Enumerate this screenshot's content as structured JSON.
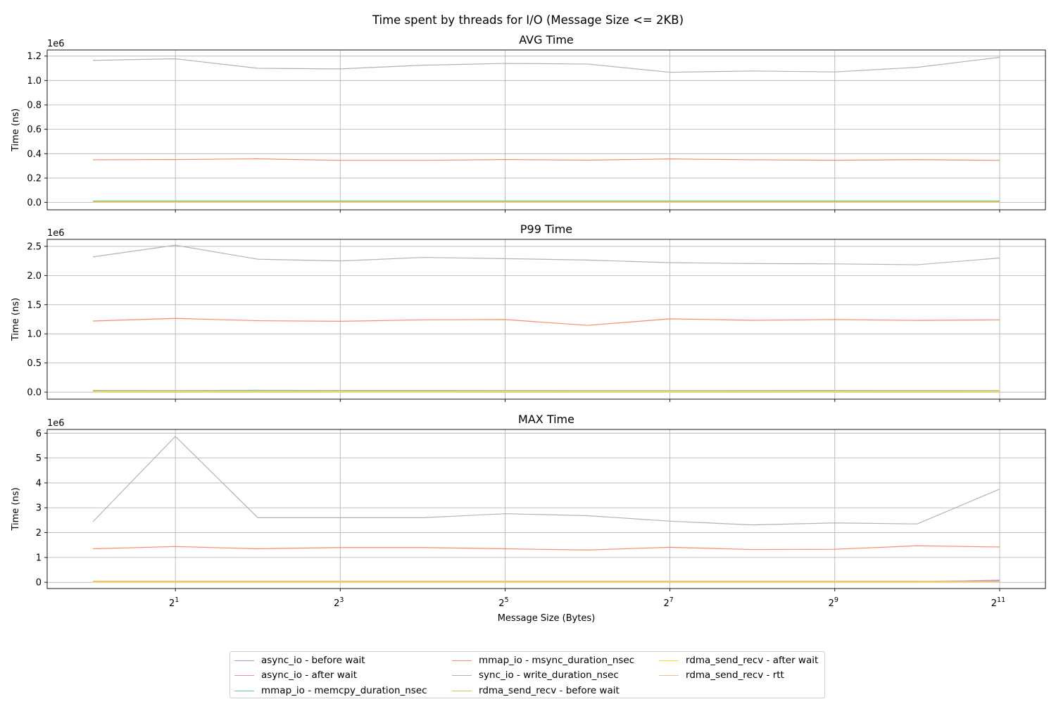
{
  "figure": {
    "suptitle": "Time spent by threads for I/O (Message Size <= 2KB)"
  },
  "chart_data": {
    "type": "line",
    "x": [
      1,
      2,
      4,
      8,
      16,
      32,
      64,
      128,
      256,
      512,
      1024,
      2048
    ],
    "xlabel": "Message Size (Bytes)",
    "xscale": "log2",
    "xticks": [
      {
        "value": 2,
        "label": "1"
      },
      {
        "value": 8,
        "label": "3"
      },
      {
        "value": 32,
        "label": "5"
      },
      {
        "value": 128,
        "label": "7"
      },
      {
        "value": 512,
        "label": "9"
      },
      {
        "value": 2048,
        "label": "11"
      }
    ],
    "xtick_base": "2",
    "grid": true,
    "legend_placement": "bottom-center",
    "series_meta": [
      {
        "name": "async_io - before wait",
        "color": "#8da0cb"
      },
      {
        "name": "async_io - after wait",
        "color": "#e78ac3"
      },
      {
        "name": "mmap_io - memcpy_duration_nsec",
        "color": "#66c2a5"
      },
      {
        "name": "mmap_io - msync_duration_nsec",
        "color": "#fc8d62"
      },
      {
        "name": "sync_io - write_duration_nsec",
        "color": "#b3b3b3"
      },
      {
        "name": "rdma_send_recv - before wait",
        "color": "#a6d854"
      },
      {
        "name": "rdma_send_recv - after wait",
        "color": "#ffd92f"
      },
      {
        "name": "rdma_send_recv - rtt",
        "color": "#e5c494"
      }
    ],
    "subplots": [
      {
        "title": "AVG Time",
        "ylabel": "Time (ns)",
        "offset_label": "1e6",
        "ylim": [
          -60000,
          1250000
        ],
        "yticks": [
          0,
          200000,
          400000,
          600000,
          800000,
          1000000,
          1200000
        ],
        "ytick_labels": [
          "0.0",
          "0.2",
          "0.4",
          "0.6",
          "0.8",
          "1.0",
          "1.2"
        ],
        "series": [
          {
            "name": "async_io - before wait",
            "values": [
              8000,
              8000,
              8000,
              8000,
              8000,
              8000,
              8000,
              8000,
              8000,
              8000,
              8000,
              8000
            ]
          },
          {
            "name": "async_io - after wait",
            "values": [
              3000,
              3000,
              3000,
              3000,
              3000,
              3000,
              3000,
              3000,
              3000,
              3000,
              3000,
              3000
            ]
          },
          {
            "name": "mmap_io - memcpy_duration_nsec",
            "values": [
              12000,
              12000,
              12000,
              12000,
              12000,
              12000,
              12000,
              12000,
              12000,
              12000,
              12000,
              12000
            ]
          },
          {
            "name": "mmap_io - msync_duration_nsec",
            "values": [
              350000,
              352000,
              358000,
              345000,
              345000,
              352000,
              347000,
              357000,
              350000,
              346000,
              351000,
              345000
            ]
          },
          {
            "name": "sync_io - write_duration_nsec",
            "values": [
              1165000,
              1178000,
              1100000,
              1095000,
              1125000,
              1140000,
              1135000,
              1067000,
              1078000,
              1070000,
              1108000,
              1190000
            ]
          },
          {
            "name": "rdma_send_recv - before wait",
            "values": [
              5000,
              5000,
              5000,
              5000,
              5000,
              5000,
              5000,
              5000,
              5000,
              5000,
              5000,
              5000
            ]
          },
          {
            "name": "rdma_send_recv - after wait",
            "values": [
              2000,
              2000,
              2000,
              2000,
              2000,
              2000,
              2000,
              2000,
              2000,
              2000,
              2000,
              2000
            ]
          },
          {
            "name": "rdma_send_recv - rtt",
            "values": [
              6000,
              6000,
              6000,
              6000,
              6000,
              6000,
              6000,
              6000,
              6000,
              6000,
              6000,
              6000
            ]
          }
        ]
      },
      {
        "title": "P99 Time",
        "ylabel": "Time (ns)",
        "offset_label": "1e6",
        "ylim": [
          -120000,
          2620000
        ],
        "yticks": [
          0,
          500000,
          1000000,
          1500000,
          2000000,
          2500000
        ],
        "ytick_labels": [
          "0.0",
          "0.5",
          "1.0",
          "1.5",
          "2.0",
          "2.5"
        ],
        "series": [
          {
            "name": "async_io - before wait",
            "values": [
              25000,
              25000,
              25000,
              25000,
              25000,
              25000,
              25000,
              25000,
              25000,
              25000,
              25000,
              25000
            ]
          },
          {
            "name": "async_io - after wait",
            "values": [
              10000,
              10000,
              10000,
              10000,
              10000,
              10000,
              10000,
              10000,
              10000,
              10000,
              10000,
              10000
            ]
          },
          {
            "name": "mmap_io - memcpy_duration_nsec",
            "values": [
              30000,
              28000,
              32000,
              30000,
              30000,
              28000,
              27000,
              26000,
              28000,
              30000,
              28000,
              27000
            ]
          },
          {
            "name": "mmap_io - msync_duration_nsec",
            "values": [
              1220000,
              1265000,
              1225000,
              1215000,
              1240000,
              1245000,
              1145000,
              1258000,
              1232000,
              1245000,
              1230000,
              1240000
            ]
          },
          {
            "name": "sync_io - write_duration_nsec",
            "values": [
              2320000,
              2520000,
              2280000,
              2250000,
              2310000,
              2290000,
              2265000,
              2220000,
              2205000,
              2200000,
              2185000,
              2300000
            ]
          },
          {
            "name": "rdma_send_recv - before wait",
            "values": [
              15000,
              15000,
              15000,
              15000,
              15000,
              15000,
              15000,
              15000,
              15000,
              15000,
              15000,
              15000
            ]
          },
          {
            "name": "rdma_send_recv - after wait",
            "values": [
              8000,
              8000,
              8000,
              8000,
              8000,
              8000,
              8000,
              8000,
              8000,
              8000,
              8000,
              8000
            ]
          },
          {
            "name": "rdma_send_recv - rtt",
            "values": [
              20000,
              20000,
              20000,
              20000,
              20000,
              20000,
              20000,
              20000,
              20000,
              20000,
              20000,
              20000
            ]
          }
        ]
      },
      {
        "title": "MAX Time",
        "ylabel": "Time (ns)",
        "offset_label": "1e6",
        "ylim": [
          -250000,
          6150000
        ],
        "yticks": [
          0,
          1000000,
          2000000,
          3000000,
          4000000,
          5000000,
          6000000
        ],
        "ytick_labels": [
          "0",
          "1",
          "2",
          "3",
          "4",
          "5",
          "6"
        ],
        "series": [
          {
            "name": "async_io - before wait",
            "values": [
              40000,
              40000,
              40000,
              40000,
              40000,
              40000,
              40000,
              40000,
              40000,
              40000,
              40000,
              70000
            ]
          },
          {
            "name": "async_io - after wait",
            "values": [
              20000,
              20000,
              20000,
              20000,
              20000,
              20000,
              20000,
              20000,
              20000,
              20000,
              20000,
              90000
            ]
          },
          {
            "name": "mmap_io - memcpy_duration_nsec",
            "values": [
              40000,
              40000,
              40000,
              40000,
              40000,
              40000,
              40000,
              40000,
              40000,
              40000,
              40000,
              40000
            ]
          },
          {
            "name": "mmap_io - msync_duration_nsec",
            "values": [
              1350000,
              1440000,
              1350000,
              1400000,
              1400000,
              1350000,
              1300000,
              1410000,
              1320000,
              1330000,
              1470000,
              1420000
            ]
          },
          {
            "name": "sync_io - write_duration_nsec",
            "values": [
              2440000,
              5870000,
              2600000,
              2600000,
              2600000,
              2760000,
              2680000,
              2460000,
              2310000,
              2390000,
              2350000,
              3750000
            ]
          },
          {
            "name": "rdma_send_recv - before wait",
            "values": [
              30000,
              30000,
              30000,
              30000,
              30000,
              30000,
              30000,
              30000,
              30000,
              30000,
              30000,
              30000
            ]
          },
          {
            "name": "rdma_send_recv - after wait",
            "values": [
              10000,
              10000,
              10000,
              10000,
              10000,
              10000,
              10000,
              10000,
              10000,
              10000,
              10000,
              10000
            ]
          },
          {
            "name": "rdma_send_recv - rtt",
            "values": [
              50000,
              50000,
              50000,
              50000,
              50000,
              50000,
              50000,
              50000,
              50000,
              50000,
              50000,
              30000
            ]
          }
        ]
      }
    ]
  }
}
